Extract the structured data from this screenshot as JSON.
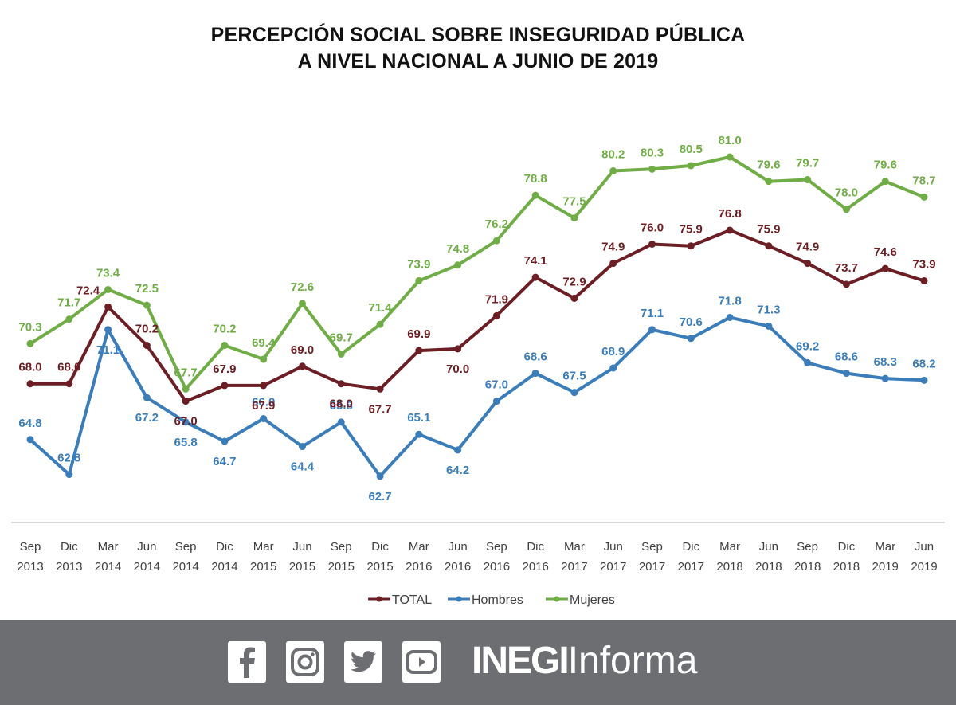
{
  "header": {
    "title_line1": "PERCEPCIÓN SOCIAL SOBRE INSEGURIDAD PÚBLICA",
    "title_line2": "A NIVEL NACIONAL A JUNIO DE 2019"
  },
  "chart_data": {
    "type": "line",
    "title": "PERCEPCIÓN SOCIAL SOBRE INSEGURIDAD PÚBLICA A NIVEL NACIONAL A JUNIO DE 2019",
    "xlabel": "",
    "ylabel": "",
    "x": [
      [
        "Sep",
        "2013"
      ],
      [
        "Dic",
        "2013"
      ],
      [
        "Mar",
        "2014"
      ],
      [
        "Jun",
        "2014"
      ],
      [
        "Sep",
        "2014"
      ],
      [
        "Dic",
        "2014"
      ],
      [
        "Mar",
        "2015"
      ],
      [
        "Jun",
        "2015"
      ],
      [
        "Sep",
        "2015"
      ],
      [
        "Dic",
        "2015"
      ],
      [
        "Mar",
        "2016"
      ],
      [
        "Jun",
        "2016"
      ],
      [
        "Sep",
        "2016"
      ],
      [
        "Dic",
        "2016"
      ],
      [
        "Mar",
        "2017"
      ],
      [
        "Jun",
        "2017"
      ],
      [
        "Sep",
        "2017"
      ],
      [
        "Dic",
        "2017"
      ],
      [
        "Mar",
        "2018"
      ],
      [
        "Jun",
        "2018"
      ],
      [
        "Sep",
        "2018"
      ],
      [
        "Dic",
        "2018"
      ],
      [
        "Mar",
        "2019"
      ],
      [
        "Jun",
        "2019"
      ]
    ],
    "series": [
      {
        "name": "TOTAL",
        "color": "#6b1f24",
        "values": [
          68.0,
          68.0,
          72.4,
          70.2,
          67.0,
          67.9,
          67.9,
          69.0,
          68.0,
          67.7,
          69.9,
          70.0,
          71.9,
          74.1,
          72.9,
          74.9,
          76.0,
          75.9,
          76.8,
          75.9,
          74.9,
          73.7,
          74.6,
          73.9
        ]
      },
      {
        "name": "Hombres",
        "color": "#3a7db9",
        "values": [
          64.8,
          62.8,
          71.1,
          67.2,
          65.8,
          64.7,
          66.0,
          64.4,
          65.8,
          62.7,
          65.1,
          64.2,
          67.0,
          68.6,
          67.5,
          68.9,
          71.1,
          70.6,
          71.8,
          71.3,
          69.2,
          68.6,
          68.3,
          68.2
        ]
      },
      {
        "name": "Mujeres",
        "color": "#70ad47",
        "values": [
          70.3,
          71.7,
          73.4,
          72.5,
          67.7,
          70.2,
          69.4,
          72.6,
          69.7,
          71.4,
          73.9,
          74.8,
          76.2,
          78.8,
          77.5,
          80.2,
          80.3,
          80.5,
          81.0,
          79.6,
          79.7,
          78.0,
          79.6,
          78.7
        ]
      }
    ],
    "ylim": [
      60,
      83
    ],
    "grid": false,
    "legend": "bottom-center",
    "y_axis_visible": false
  },
  "footer": {
    "social_icons": [
      "facebook-icon",
      "instagram-icon",
      "twitter-icon",
      "youtube-icon"
    ],
    "brand_bold": "INEGI",
    "brand_light": "Informa",
    "background": "#6d6e71"
  }
}
